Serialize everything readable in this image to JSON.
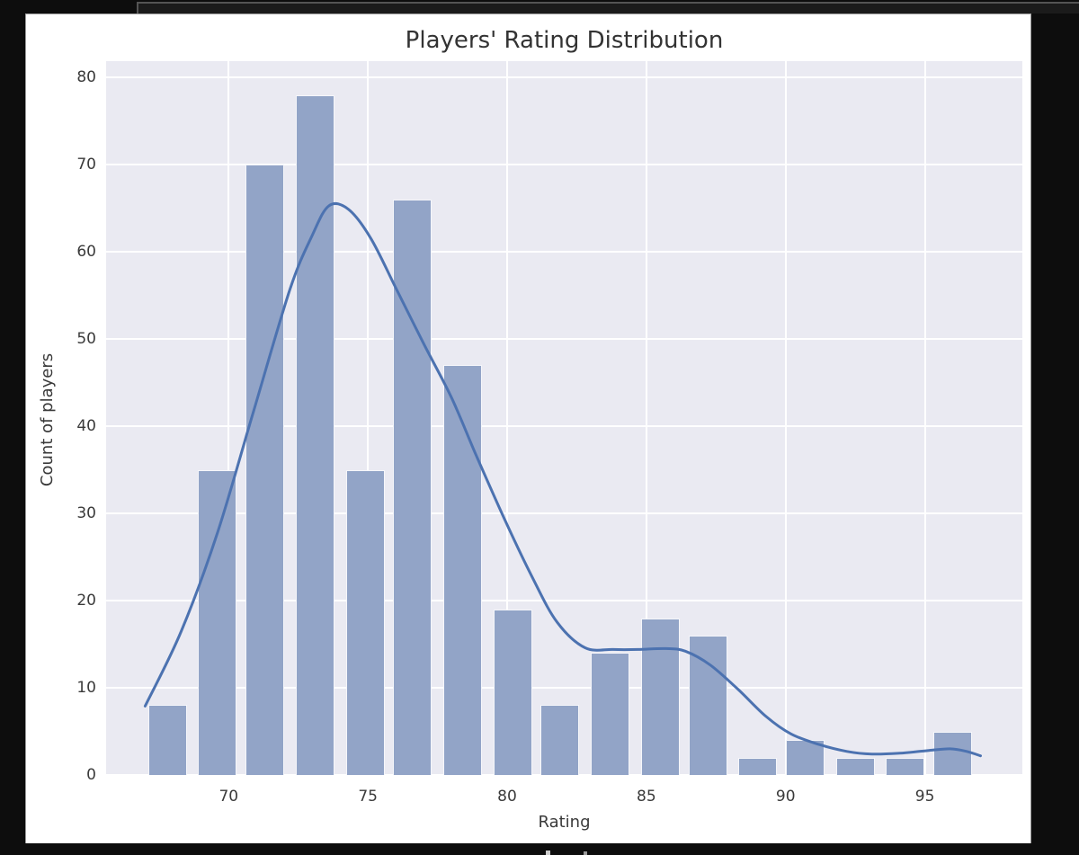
{
  "chart_data": {
    "type": "histogram",
    "title": "Players' Rating Distribution",
    "xlabel": "Rating",
    "ylabel": "Count of players",
    "x_ticks": [
      70,
      75,
      80,
      85,
      90,
      95
    ],
    "y_ticks": [
      0,
      10,
      20,
      30,
      40,
      50,
      60,
      70,
      80
    ],
    "xlim": [
      65.6,
      98.5
    ],
    "ylim": [
      0,
      81.9
    ],
    "grid": true,
    "legend": false,
    "bin_centers": [
      67.8,
      69.6,
      71.3,
      73.1,
      74.9,
      76.6,
      78.4,
      80.2,
      81.9,
      83.7,
      85.5,
      87.2,
      89.0,
      90.7,
      92.5,
      94.3,
      96.0
    ],
    "counts": [
      8,
      35,
      70,
      78,
      35,
      66,
      47,
      19,
      8,
      14,
      18,
      16,
      2,
      4,
      2,
      2,
      5
    ],
    "kde_overlay": {
      "name": "kde-curve",
      "points": [
        [
          67.0,
          7.9
        ],
        [
          68.3,
          16.5
        ],
        [
          69.6,
          27.8
        ],
        [
          70.9,
          41.8
        ],
        [
          72.2,
          55.7
        ],
        [
          73.0,
          61.9
        ],
        [
          73.6,
          65.3
        ],
        [
          74.3,
          64.9
        ],
        [
          75.1,
          61.6
        ],
        [
          76.0,
          55.9
        ],
        [
          77.0,
          49.5
        ],
        [
          78.0,
          43.3
        ],
        [
          78.9,
          36.6
        ],
        [
          79.9,
          29.4
        ],
        [
          80.9,
          22.7
        ],
        [
          81.8,
          17.5
        ],
        [
          82.8,
          14.6
        ],
        [
          83.8,
          14.4
        ],
        [
          84.7,
          14.4
        ],
        [
          85.7,
          14.5
        ],
        [
          86.4,
          14.2
        ],
        [
          87.3,
          12.6
        ],
        [
          88.3,
          9.8
        ],
        [
          89.3,
          6.7
        ],
        [
          90.2,
          4.7
        ],
        [
          91.2,
          3.5
        ],
        [
          92.2,
          2.7
        ],
        [
          93.1,
          2.4
        ],
        [
          94.1,
          2.5
        ],
        [
          95.1,
          2.8
        ],
        [
          95.9,
          3.0
        ],
        [
          96.5,
          2.7
        ],
        [
          97.0,
          2.2
        ]
      ]
    },
    "colors": {
      "page_bg": "#0d0d0d",
      "figure_bg": "#ffffff",
      "plot_bg": "#eaeaf2",
      "grid": "#ffffff",
      "bar_fill": "#92a4c7",
      "bar_edge": "#f5f6fa",
      "kde_line": "#4c72b0",
      "text": "#3a3a3a"
    }
  }
}
